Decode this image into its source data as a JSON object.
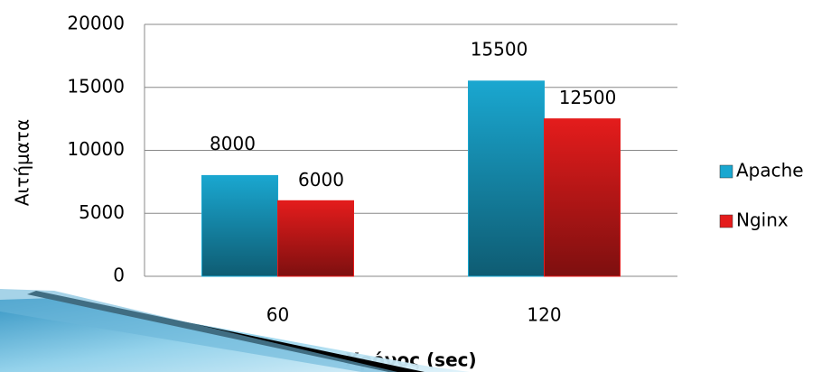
{
  "chart_data": {
    "type": "bar",
    "categories": [
      "60",
      "120"
    ],
    "series": [
      {
        "name": "Apache",
        "color": "#1aa7d0",
        "values": [
          8000,
          15500
        ]
      },
      {
        "name": "Nginx",
        "color": "#e41c1c",
        "values": [
          6000,
          12500
        ]
      }
    ],
    "ylim": [
      0,
      20000
    ],
    "yticks": [
      0,
      5000,
      10000,
      15000,
      20000
    ],
    "grid": true,
    "x_label": "Χρόνος (sec)",
    "y_label": "Αιτήματα",
    "legend": "right"
  }
}
